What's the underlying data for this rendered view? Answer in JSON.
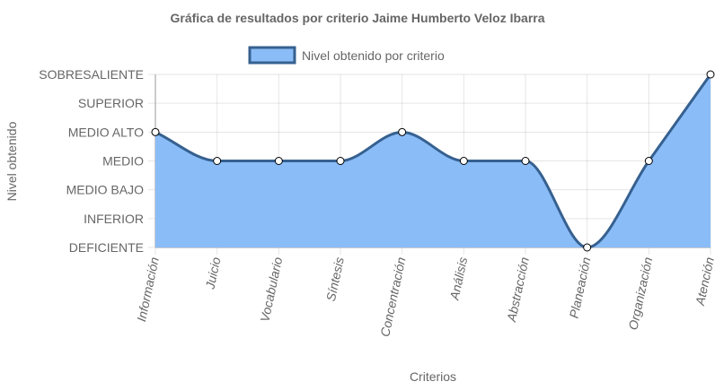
{
  "chart_data": {
    "type": "area",
    "title": "Gráfica de resultados por criterio Jaime Humberto Veloz Ibarra",
    "xlabel": "Criterios",
    "ylabel": "Nivel obtenido",
    "categories": [
      "Información",
      "Juicio",
      "Vocabulario",
      "Síntesis",
      "Concentración",
      "Análisis",
      "Abstracción",
      "Planeación",
      "Organización",
      "Atención"
    ],
    "y_levels": [
      "DEFICIENTE",
      "INFERIOR",
      "MEDIO BAJO",
      "MEDIO",
      "MEDIO ALTO",
      "SUPERIOR",
      "SOBRESALIENTE"
    ],
    "ylim": [
      0,
      6
    ],
    "series": [
      {
        "name": "Nivel obtenido por criterio",
        "values": [
          4,
          3,
          3,
          3,
          4,
          3,
          3,
          0,
          3,
          6
        ]
      }
    ],
    "colors": {
      "fill": "#8abcf7",
      "line": "#36608f",
      "point_fill": "#ffffff",
      "point_stroke": "#000000"
    },
    "grid": true,
    "legend_position": "top"
  }
}
